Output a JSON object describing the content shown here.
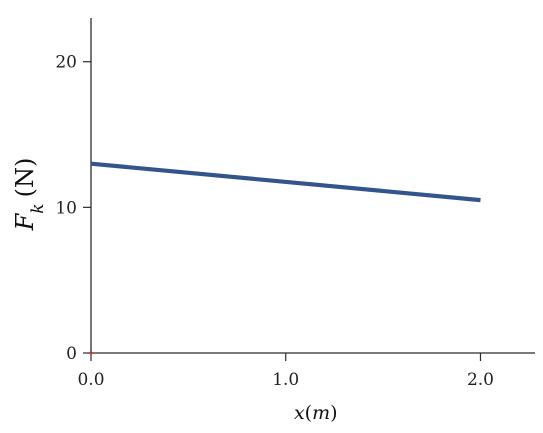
{
  "chart_data": {
    "type": "line",
    "title": "",
    "xlabel": {
      "symbol": "x",
      "unit": "m"
    },
    "ylabel": {
      "symbol": "F",
      "subscript": "k",
      "unit": "N"
    },
    "xlim": [
      0,
      2.28
    ],
    "ylim": [
      0,
      23
    ],
    "x_ticks": [
      {
        "value": 0,
        "label": "0.0"
      },
      {
        "value": 1,
        "label": "1.0"
      },
      {
        "value": 2,
        "label": "2.0"
      }
    ],
    "y_ticks": [
      {
        "value": 0,
        "label": "0"
      },
      {
        "value": 10,
        "label": "10"
      },
      {
        "value": 20,
        "label": "20"
      }
    ],
    "grid": false,
    "legend": "none",
    "series": [
      {
        "x": [
          0,
          2.0
        ],
        "y": [
          13.0,
          10.5
        ],
        "color": "#34548c"
      }
    ]
  }
}
